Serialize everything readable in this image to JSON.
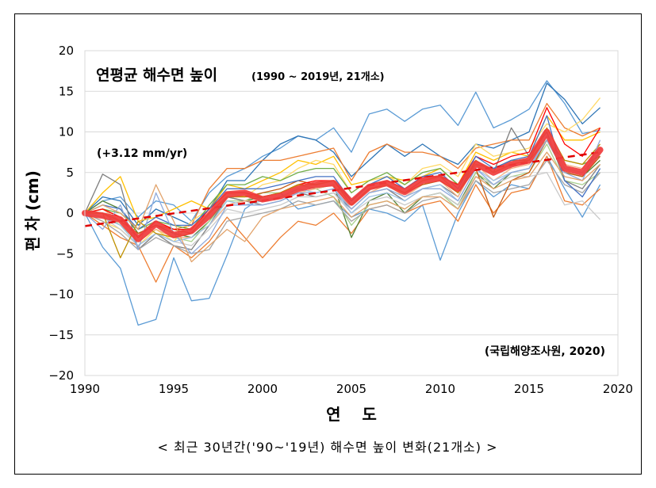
{
  "chart_data": {
    "type": "line",
    "title": "연평균 해수면 높이",
    "subtitle": "(1990 ~ 2019년, 21개소)",
    "trend_annotation": "(+3.12 mm/yr)",
    "source": "(국립해양조사원, 2020)",
    "caption": "< 최근 30년간('90~'19년) 해수면 높이 변화(21개소) >",
    "xlabel": "연 도",
    "ylabel": "편 차 (cm)",
    "xlim": [
      1990,
      2020
    ],
    "ylim": [
      -20,
      20
    ],
    "x_ticks": [
      1990,
      1995,
      2000,
      2005,
      2010,
      2015,
      2020
    ],
    "y_ticks": [
      20,
      15,
      10,
      5,
      0,
      -5,
      -10,
      -15,
      -20
    ],
    "y_tick_labels": [
      "20",
      "15",
      "10",
      "5",
      "0",
      "−5",
      "−10",
      "−15",
      "−20"
    ],
    "grid": true,
    "legend": "none",
    "x": [
      1990,
      1991,
      1992,
      1993,
      1994,
      1995,
      1996,
      1997,
      1998,
      1999,
      2000,
      2001,
      2002,
      2003,
      2004,
      2005,
      2006,
      2007,
      2008,
      2009,
      2010,
      2011,
      2012,
      2013,
      2014,
      2015,
      2016,
      2017,
      2018,
      2019
    ],
    "average": {
      "color": "#f03c3c",
      "values": [
        0,
        -0.3,
        -0.8,
        -3.2,
        -1.3,
        -2.7,
        -2.2,
        -0.3,
        2.3,
        2.5,
        1.7,
        2.1,
        3.0,
        3.5,
        3.7,
        1.3,
        3.2,
        3.7,
        2.6,
        4.0,
        4.3,
        3.0,
        6.1,
        5.0,
        6.0,
        6.5,
        10.0,
        5.5,
        5.0,
        7.8
      ]
    },
    "trend": {
      "color": "#e00000",
      "start": [
        1990,
        -1.6
      ],
      "end": [
        2019,
        7.5
      ]
    },
    "stations": [
      {
        "color": "#5b9bd5",
        "values": [
          0,
          -4.2,
          -6.8,
          -13.8,
          -13.1,
          -5.5,
          -10.8,
          -10.5,
          -5.2,
          0.5,
          2.0,
          2.5,
          0.5,
          1.0,
          1.5,
          -0.5,
          0.5,
          0.0,
          -1.0,
          1.0,
          -5.8,
          0.0,
          4.0,
          2.0,
          3.5,
          3.0,
          7.0,
          3.0,
          -0.5,
          3.5
        ]
      },
      {
        "color": "#5b9bd5",
        "values": [
          0,
          1.5,
          2.0,
          -0.5,
          1.5,
          1.0,
          -1.0,
          2.5,
          4.5,
          5.5,
          7.0,
          8.0,
          9.5,
          9.0,
          10.5,
          7.5,
          12.2,
          12.8,
          11.3,
          12.8,
          13.3,
          10.8,
          14.9,
          10.5,
          11.5,
          12.8,
          16.3,
          13.5,
          9.8,
          10.2
        ]
      },
      {
        "color": "#2e75b6",
        "values": [
          0,
          2.0,
          1.5,
          -1.5,
          0.5,
          -0.5,
          -1.5,
          0.5,
          4.0,
          4.0,
          6.5,
          8.5,
          9.5,
          9.0,
          7.5,
          4.5,
          6.5,
          8.5,
          7.0,
          8.5,
          7.0,
          6.0,
          8.5,
          8.0,
          9.0,
          10.0,
          16.0,
          14.0,
          11.0,
          13.0
        ]
      },
      {
        "color": "#ed7d31",
        "values": [
          0,
          -1.5,
          -3.0,
          -4.0,
          -8.5,
          -4.0,
          -5.5,
          -3.5,
          -0.5,
          -3.0,
          -5.5,
          -3.0,
          -1.0,
          -1.5,
          0.0,
          -2.5,
          0.5,
          1.0,
          0.0,
          1.0,
          1.5,
          -1.0,
          3.5,
          0.0,
          2.5,
          3.0,
          7.0,
          1.5,
          1.0,
          3.0
        ]
      },
      {
        "color": "#ed7d31",
        "values": [
          0,
          0.5,
          -0.5,
          -3.0,
          -1.0,
          -2.0,
          -1.5,
          3.0,
          5.5,
          5.5,
          6.5,
          6.5,
          7.0,
          7.5,
          8.0,
          4.0,
          7.5,
          8.5,
          7.5,
          7.5,
          7.0,
          5.5,
          8.0,
          8.5,
          9.0,
          9.0,
          13.5,
          10.5,
          9.5,
          10.5
        ]
      },
      {
        "color": "#ffc000",
        "values": [
          0,
          2.5,
          4.5,
          -1.0,
          -0.5,
          0.5,
          1.5,
          0.5,
          3.5,
          3.0,
          4.0,
          5.0,
          6.5,
          6.0,
          7.0,
          3.5,
          4.0,
          4.5,
          4.0,
          4.5,
          5.5,
          3.5,
          7.5,
          6.5,
          7.5,
          7.0,
          12.0,
          9.0,
          9.0,
          10.0
        ]
      },
      {
        "color": "#ffd966",
        "values": [
          0,
          -1.0,
          -2.0,
          -4.0,
          -2.0,
          -3.5,
          -1.0,
          0.5,
          2.5,
          2.0,
          3.5,
          4.0,
          5.5,
          6.5,
          6.0,
          2.5,
          4.0,
          4.5,
          3.5,
          5.5,
          6.0,
          4.5,
          8.5,
          7.0,
          7.5,
          8.0,
          11.0,
          10.0,
          11.5,
          14.2
        ]
      },
      {
        "color": "#70ad47",
        "values": [
          0,
          0.5,
          0.0,
          -2.0,
          -1.0,
          -1.5,
          -2.0,
          1.0,
          3.5,
          3.5,
          4.5,
          4.0,
          5.0,
          5.5,
          5.5,
          2.5,
          4.0,
          5.0,
          3.5,
          5.0,
          5.5,
          3.5,
          6.0,
          5.5,
          6.5,
          6.5,
          9.0,
          6.5,
          6.0,
          7.0
        ]
      },
      {
        "color": "#548235",
        "values": [
          0,
          1.5,
          0.5,
          -2.5,
          -1.5,
          -2.5,
          -3.0,
          -1.0,
          2.0,
          1.5,
          2.0,
          2.5,
          3.5,
          3.0,
          3.5,
          -3.0,
          1.5,
          2.5,
          0.0,
          2.0,
          2.5,
          1.0,
          5.0,
          3.0,
          5.0,
          5.5,
          9.0,
          5.0,
          4.5,
          6.5
        ]
      },
      {
        "color": "#a9d18e",
        "values": [
          0,
          0.0,
          -1.5,
          -3.5,
          -2.0,
          -3.0,
          -3.5,
          -1.0,
          1.5,
          1.5,
          2.5,
          2.5,
          3.5,
          3.0,
          2.0,
          -1.5,
          1.0,
          1.5,
          0.5,
          2.0,
          2.5,
          0.5,
          5.0,
          3.5,
          4.5,
          5.0,
          8.5,
          4.0,
          3.5,
          5.0
        ]
      },
      {
        "color": "#7f7f7f",
        "values": [
          0,
          4.8,
          3.5,
          -4.5,
          -2.5,
          -4.0,
          -4.5,
          -1.5,
          2.0,
          1.5,
          1.0,
          1.5,
          2.5,
          2.0,
          2.5,
          0.5,
          2.5,
          3.0,
          1.5,
          3.0,
          3.5,
          2.0,
          6.5,
          5.0,
          10.5,
          7.0,
          10.0,
          4.0,
          3.0,
          6.0
        ]
      },
      {
        "color": "#a5a5a5",
        "values": [
          0,
          -1.0,
          -2.5,
          -4.5,
          -3.0,
          -4.0,
          -5.0,
          -4.5,
          -1.0,
          -0.5,
          0.0,
          0.5,
          1.5,
          1.0,
          1.5,
          -1.0,
          0.5,
          1.0,
          0.0,
          1.5,
          2.0,
          0.5,
          4.0,
          2.5,
          3.0,
          3.5,
          6.5,
          3.5,
          2.5,
          5.0
        ]
      },
      {
        "color": "#c9c9c9",
        "values": [
          0,
          -0.5,
          -2.0,
          -4.0,
          -2.5,
          -3.5,
          -4.0,
          -2.0,
          0.5,
          0.0,
          0.5,
          1.0,
          2.0,
          2.0,
          2.5,
          0.0,
          1.5,
          2.0,
          1.0,
          2.0,
          2.5,
          1.0,
          4.5,
          3.5,
          4.5,
          4.5,
          5.0,
          1.0,
          1.5,
          -0.8
        ]
      },
      {
        "color": "#f4b183",
        "values": [
          0,
          0.5,
          -1.0,
          -3.5,
          -2.0,
          -3.0,
          -3.0,
          -1.5,
          1.0,
          1.5,
          1.5,
          2.0,
          2.5,
          3.0,
          3.5,
          0.5,
          2.5,
          3.5,
          2.0,
          3.5,
          4.0,
          2.0,
          6.0,
          4.0,
          5.5,
          6.0,
          9.0,
          6.0,
          5.5,
          8.0
        ]
      },
      {
        "color": "#c55a11",
        "values": [
          0,
          0.0,
          -1.0,
          -2.5,
          -1.5,
          -2.0,
          -2.5,
          0.0,
          2.0,
          2.0,
          2.5,
          3.0,
          4.0,
          3.5,
          4.0,
          1.0,
          3.0,
          3.5,
          2.5,
          3.5,
          4.0,
          2.5,
          5.5,
          -0.5,
          4.0,
          5.0,
          9.0,
          5.0,
          4.5,
          7.0
        ]
      },
      {
        "color": "#ff0000",
        "values": [
          0,
          0.5,
          -0.5,
          -3.0,
          -1.0,
          -2.0,
          -2.0,
          0.5,
          2.5,
          2.5,
          2.0,
          2.5,
          3.5,
          4.0,
          4.0,
          1.5,
          3.5,
          4.0,
          3.0,
          4.5,
          4.5,
          3.5,
          7.0,
          6.0,
          7.0,
          7.5,
          13.0,
          8.5,
          7.0,
          10.5
        ]
      },
      {
        "color": "#4472c4",
        "values": [
          0,
          1.0,
          0.5,
          -2.0,
          -0.5,
          -1.5,
          -1.5,
          0.5,
          3.0,
          3.0,
          3.0,
          3.5,
          4.0,
          4.5,
          4.5,
          1.5,
          3.5,
          4.5,
          3.0,
          4.5,
          5.0,
          3.0,
          7.0,
          5.5,
          6.5,
          7.0,
          12.0,
          4.0,
          2.0,
          5.5
        ]
      },
      {
        "color": "#9dc3e6",
        "values": [
          0,
          -0.5,
          -1.5,
          -4.0,
          -2.5,
          -3.5,
          -3.0,
          -1.5,
          1.5,
          1.0,
          1.5,
          2.0,
          3.0,
          2.5,
          3.0,
          0.0,
          2.0,
          2.5,
          1.5,
          3.0,
          3.5,
          1.5,
          5.5,
          4.0,
          5.0,
          5.5,
          9.5,
          5.5,
          5.0,
          7.5
        ]
      },
      {
        "color": "#bf9000",
        "values": [
          0,
          0.0,
          -5.5,
          -1.0,
          -2.5,
          -3.0,
          -2.5,
          0.0,
          2.0,
          2.0,
          2.0,
          2.5,
          3.5,
          3.5,
          4.0,
          1.0,
          3.0,
          3.5,
          2.5,
          4.0,
          4.5,
          2.5,
          6.5,
          5.0,
          6.0,
          6.5,
          10.5,
          6.5,
          6.0,
          8.5
        ]
      },
      {
        "color": "#8faadc",
        "values": [
          0,
          -2.0,
          1.0,
          -4.5,
          2.5,
          -2.5,
          -5.0,
          -3.0,
          1.0,
          1.0,
          1.0,
          1.5,
          2.5,
          2.5,
          3.0,
          0.5,
          2.5,
          3.0,
          2.0,
          3.0,
          3.0,
          1.5,
          5.5,
          3.5,
          5.0,
          5.5,
          9.0,
          5.0,
          4.0,
          9.0
        ]
      },
      {
        "color": "#e2a36b",
        "values": [
          0,
          1.0,
          0.0,
          -2.0,
          3.5,
          -1.0,
          -6.0,
          -4.0,
          -2.0,
          -3.5,
          -0.5,
          0.5,
          1.0,
          1.5,
          2.0,
          -0.5,
          1.0,
          1.5,
          0.5,
          2.0,
          2.0,
          0.5,
          4.5,
          3.0,
          4.0,
          4.5,
          7.5,
          4.5,
          4.0,
          6.0
        ]
      }
    ]
  }
}
